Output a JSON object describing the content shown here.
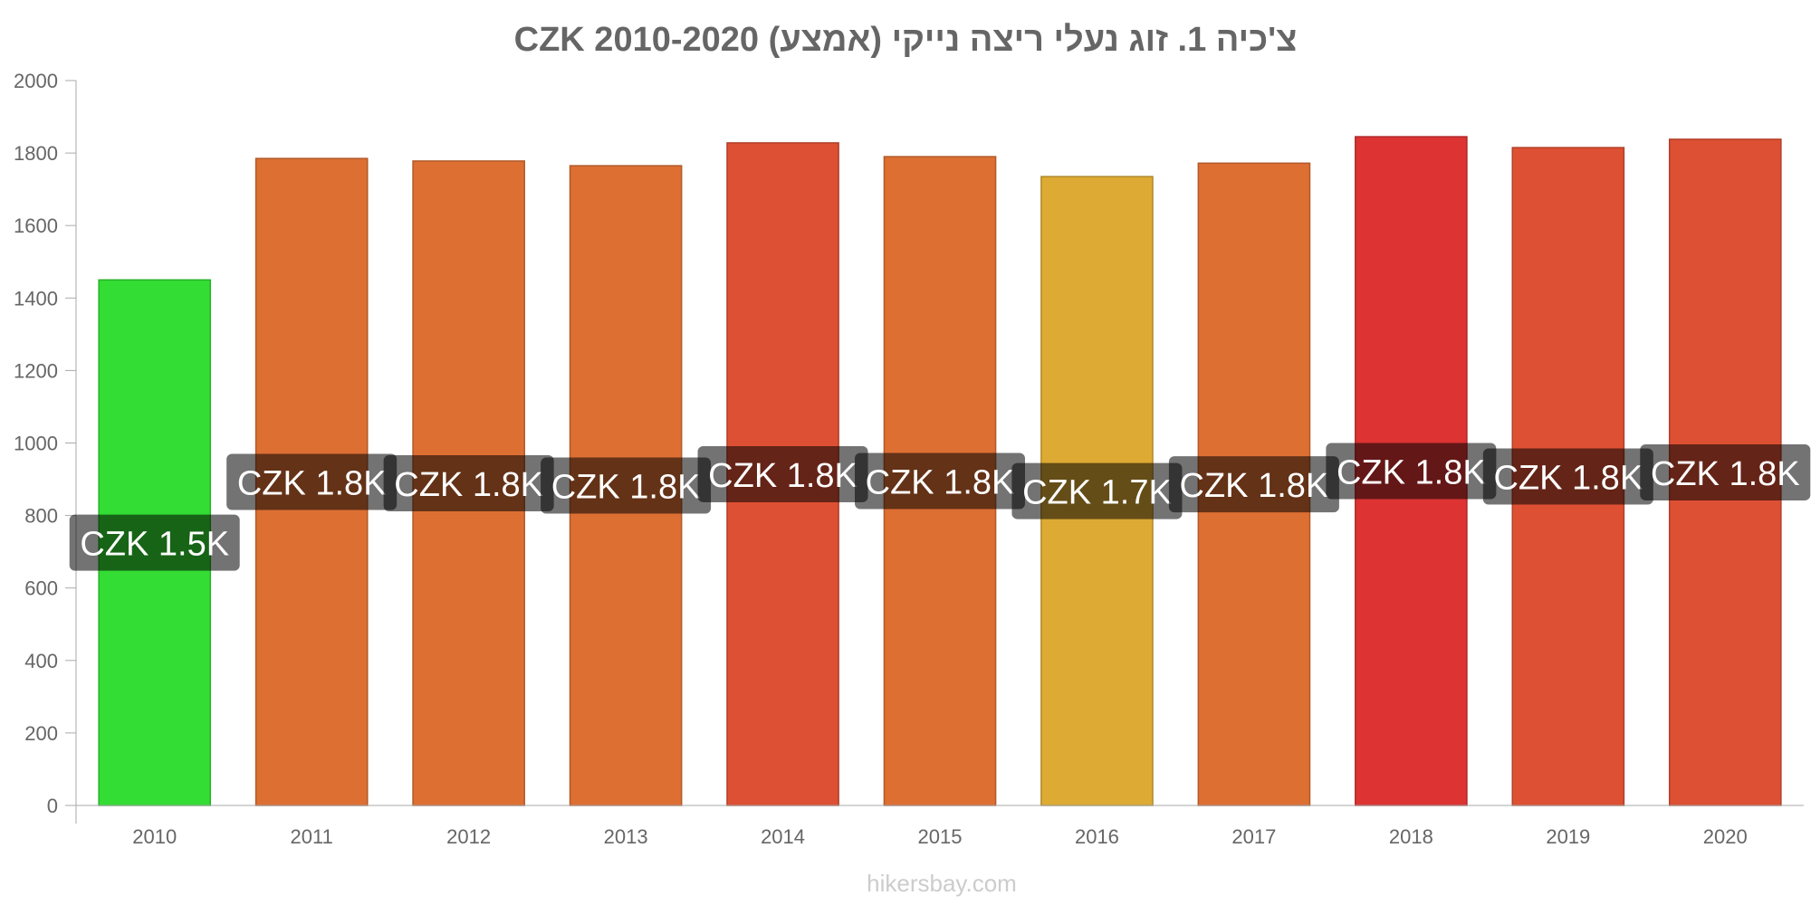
{
  "chart_data": {
    "type": "bar",
    "title": "צ'כיה 1. זוג נעלי ריצה נייקי (אמצע) CZK 2010-2020",
    "categories": [
      "2010",
      "2011",
      "2012",
      "2013",
      "2014",
      "2015",
      "2016",
      "2017",
      "2018",
      "2019",
      "2020"
    ],
    "values": [
      1450,
      1785,
      1778,
      1765,
      1828,
      1790,
      1735,
      1772,
      1845,
      1815,
      1838
    ],
    "data_labels": [
      "CZK 1.5K",
      "CZK 1.8K",
      "CZK 1.8K",
      "CZK 1.8K",
      "CZK 1.8K",
      "CZK 1.8K",
      "CZK 1.7K",
      "CZK 1.8K",
      "CZK 1.8K",
      "CZK 1.8K",
      "CZK 1.8K"
    ],
    "bar_colors": [
      "#33dd33",
      "#dd6f33",
      "#dd6f33",
      "#dd6f33",
      "#dd5033",
      "#dd6f33",
      "#ddaa33",
      "#dd6f33",
      "#dd3333",
      "#dd5033",
      "#dd5033"
    ],
    "y_ticks": [
      "0",
      "200",
      "400",
      "600",
      "800",
      "1000",
      "1200",
      "1400",
      "1600",
      "1800",
      "2000"
    ],
    "ylim": [
      0,
      2000
    ],
    "xlabel": "",
    "ylabel": "",
    "grid": false,
    "legend": "none"
  },
  "watermark": "hikersbay.com"
}
